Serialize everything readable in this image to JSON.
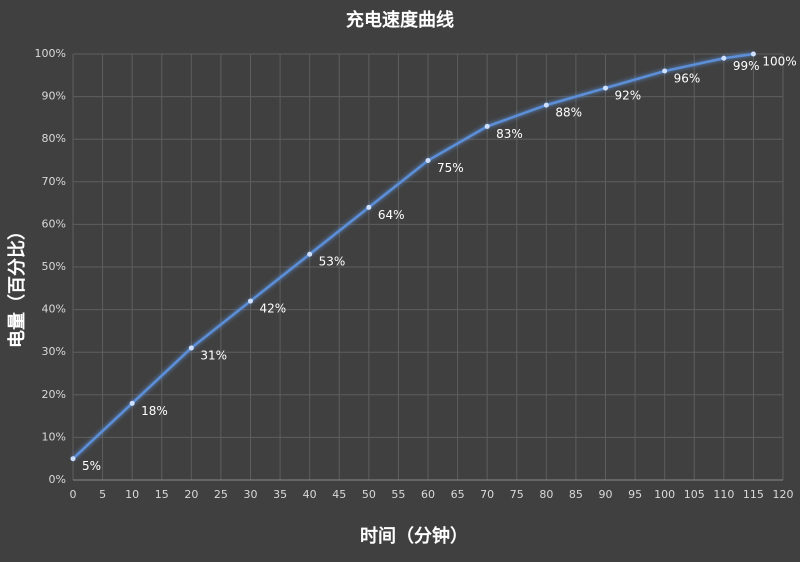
{
  "chart_data": {
    "type": "line",
    "title": "充电速度曲线",
    "x_label": "时间（分钟）",
    "y_label": "电量（百分比）",
    "x": [
      0,
      10,
      20,
      30,
      40,
      50,
      60,
      70,
      80,
      90,
      100,
      110,
      115
    ],
    "series": [
      {
        "name": "电量",
        "color": "#5b8fd8",
        "values": [
          5,
          18,
          31,
          42,
          53,
          64,
          75,
          83,
          88,
          92,
          96,
          99,
          100
        ],
        "value_labels": [
          "5%",
          "18%",
          "31%",
          "42%",
          "53%",
          "64%",
          "75%",
          "83%",
          "88%",
          "92%",
          "96%",
          "99%",
          "100%"
        ]
      }
    ],
    "xlim": [
      0,
      120
    ],
    "xticks": [
      0,
      5,
      10,
      15,
      20,
      25,
      30,
      35,
      40,
      45,
      50,
      55,
      60,
      65,
      70,
      75,
      80,
      85,
      90,
      95,
      100,
      105,
      110,
      115,
      120
    ],
    "ylim": [
      0,
      100
    ],
    "yticks": [
      {
        "value": 0,
        "label": "0%"
      },
      {
        "value": 10,
        "label": "10%"
      },
      {
        "value": 20,
        "label": "20%"
      },
      {
        "value": 30,
        "label": "30%"
      },
      {
        "value": 40,
        "label": "40%"
      },
      {
        "value": 50,
        "label": "50%"
      },
      {
        "value": 60,
        "label": "60%"
      },
      {
        "value": 70,
        "label": "70%"
      },
      {
        "value": 80,
        "label": "80%"
      },
      {
        "value": 90,
        "label": "90%"
      },
      {
        "value": 100,
        "label": "100%"
      }
    ],
    "grid": true
  }
}
